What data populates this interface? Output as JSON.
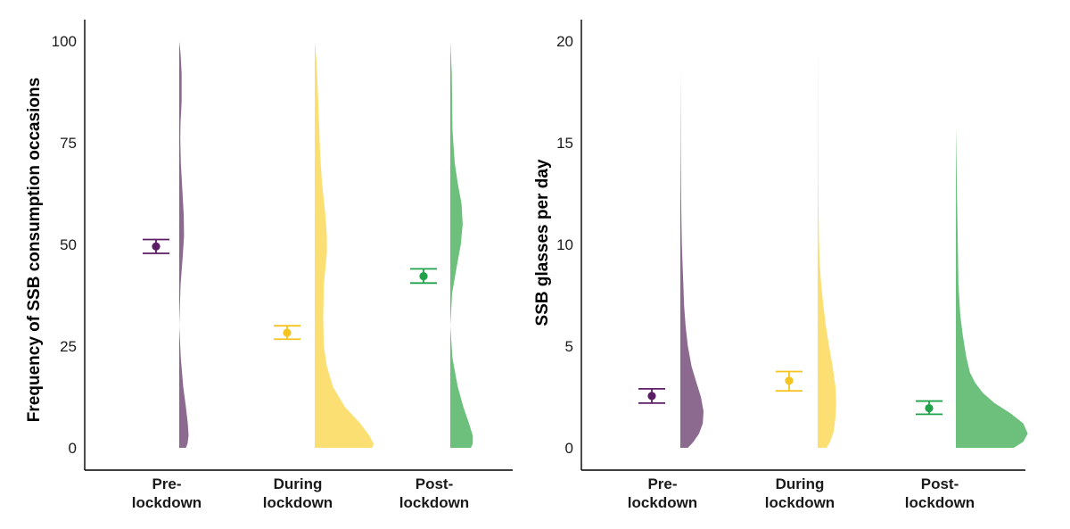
{
  "colors": {
    "pre": "#8c6a8f",
    "pre_point": "#5b1d63",
    "during": "#fcdf72",
    "during_point": "#f5c41e",
    "post": "#6cc07b",
    "post_point": "#1fa24a"
  },
  "chart_data": [
    {
      "type": "violin",
      "title": "",
      "xlabel": "",
      "ylabel": "Frequency of SSB consumption occasions",
      "ylim": [
        0,
        100
      ],
      "yticks": [
        "0",
        "25",
        "50",
        "75",
        "100"
      ],
      "categories": [
        "Pre-\nlockdown",
        "During\nlockdown",
        "Post-\nlockdown"
      ],
      "category_lines": [
        [
          "Pre-",
          "lockdown"
        ],
        [
          "During",
          "lockdown"
        ],
        [
          "Post-",
          "lockdown"
        ]
      ],
      "grid": false,
      "legend": "none",
      "series": [
        {
          "key": "pre",
          "mean": 49.5,
          "ci_low": 47.8,
          "ci_high": 51.2,
          "density_y": [
            0,
            1,
            3,
            6,
            10,
            15,
            22,
            30,
            40,
            47,
            52,
            57,
            63,
            70,
            76,
            80,
            85,
            92,
            97,
            100
          ],
          "density_width": [
            0.25,
            0.31,
            0.35,
            0.32,
            0.25,
            0.15,
            0.06,
            0.0,
            0.05,
            0.13,
            0.18,
            0.17,
            0.12,
            0.06,
            0.04,
            0.05,
            0.09,
            0.09,
            0.05,
            0.0
          ]
        },
        {
          "key": "during",
          "mean": 28.3,
          "ci_low": 26.7,
          "ci_high": 30.0,
          "density_y": [
            0,
            1,
            3,
            6,
            10,
            15,
            20,
            25,
            32,
            40,
            48,
            52,
            58,
            65,
            72,
            80,
            88,
            95,
            100
          ],
          "density_width": [
            0.95,
            0.97,
            0.9,
            0.75,
            0.5,
            0.3,
            0.2,
            0.15,
            0.14,
            0.15,
            0.2,
            0.2,
            0.17,
            0.12,
            0.09,
            0.07,
            0.05,
            0.03,
            0.0
          ]
        },
        {
          "key": "post",
          "mean": 42.2,
          "ci_low": 40.5,
          "ci_high": 44.0,
          "density_y": [
            0,
            1,
            3,
            6,
            10,
            15,
            22,
            30,
            38,
            45,
            50,
            55,
            60,
            65,
            70,
            78,
            85,
            92,
            100
          ],
          "density_width": [
            0.55,
            0.6,
            0.6,
            0.5,
            0.35,
            0.2,
            0.06,
            0.0,
            0.05,
            0.18,
            0.28,
            0.33,
            0.3,
            0.2,
            0.12,
            0.06,
            0.05,
            0.04,
            0.0
          ]
        }
      ]
    },
    {
      "type": "violin",
      "title": "",
      "xlabel": "",
      "ylabel": "SSB glasses per day",
      "ylim": [
        0,
        20
      ],
      "yticks": [
        "0",
        "5",
        "10",
        "15",
        "20"
      ],
      "categories": [
        "Pre-\nlockdown",
        "During\nlockdown",
        "Post-\nlockdown"
      ],
      "category_lines": [
        [
          "Pre-",
          "lockdown"
        ],
        [
          "During",
          "lockdown"
        ],
        [
          "Post-",
          "lockdown"
        ]
      ],
      "grid": false,
      "legend": "none",
      "series": [
        {
          "key": "pre",
          "mean": 2.55,
          "ci_low": 2.2,
          "ci_high": 2.9,
          "density_y": [
            0,
            0.3,
            0.7,
            1.2,
            1.8,
            2.5,
            3.2,
            4.0,
            5.0,
            6.0,
            7.0,
            8.0,
            9.0,
            10.0,
            11.0,
            12.5,
            14.5,
            16.5,
            18.5
          ],
          "density_width": [
            0.2,
            0.35,
            0.5,
            0.6,
            0.62,
            0.55,
            0.43,
            0.3,
            0.2,
            0.14,
            0.1,
            0.08,
            0.06,
            0.04,
            0.03,
            0.02,
            0.01,
            0.005,
            0.0
          ]
        },
        {
          "key": "during",
          "mean": 3.3,
          "ci_low": 2.8,
          "ci_high": 3.75,
          "density_y": [
            0,
            0.3,
            0.8,
            1.5,
            2.2,
            3.0,
            4.0,
            5.0,
            6.0,
            7.0,
            8.0,
            9.0,
            10.0,
            11.0,
            12.0,
            14.0,
            16.0,
            18.0,
            20.0
          ],
          "density_width": [
            0.25,
            0.35,
            0.45,
            0.5,
            0.52,
            0.5,
            0.42,
            0.32,
            0.23,
            0.16,
            0.1,
            0.06,
            0.04,
            0.03,
            0.02,
            0.012,
            0.008,
            0.004,
            0.0
          ]
        },
        {
          "key": "post",
          "mean": 1.95,
          "ci_low": 1.65,
          "ci_high": 2.3,
          "density_y": [
            0,
            0.3,
            0.7,
            1.2,
            1.7,
            2.2,
            2.7,
            3.2,
            3.7,
            4.5,
            5.5,
            6.5,
            8.0,
            10.0,
            12.0,
            14.0,
            15.8
          ],
          "density_width": [
            0.9,
            1.05,
            1.12,
            1.05,
            0.85,
            0.6,
            0.42,
            0.3,
            0.22,
            0.16,
            0.11,
            0.07,
            0.04,
            0.03,
            0.02,
            0.01,
            0.0
          ]
        }
      ]
    }
  ]
}
